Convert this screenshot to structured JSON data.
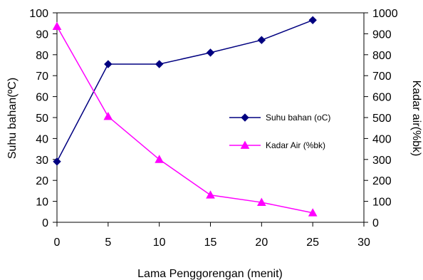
{
  "chart_data": {
    "type": "line",
    "title": "",
    "xlabel": "Lama Penggorengan (menit)",
    "ylabel": "Suhu bahan(ºC)",
    "y2label": "Kadar  air(%bk)",
    "xlim": [
      0,
      30
    ],
    "ylim": [
      0,
      100
    ],
    "y2lim": [
      0,
      1000
    ],
    "xticks": [
      "0",
      "5",
      "10",
      "15",
      "20",
      "25",
      "30"
    ],
    "yticks": [
      "0",
      "10",
      "20",
      "30",
      "40",
      "50",
      "60",
      "70",
      "80",
      "90",
      "100"
    ],
    "y2ticks": [
      "0",
      "100",
      "200",
      "300",
      "400",
      "500",
      "600",
      "700",
      "800",
      "900",
      "1000"
    ],
    "grid": false,
    "legend_position": "center-right",
    "series": [
      {
        "name": "Suhu bahan (oC)",
        "axis": "left",
        "marker": "diamond",
        "color": "#000080",
        "x": [
          0,
          5,
          10,
          15,
          20,
          25
        ],
        "values": [
          29,
          75.5,
          75.5,
          81,
          87,
          96.5
        ]
      },
      {
        "name": "Kadar Air (%bk)",
        "axis": "right",
        "marker": "triangle",
        "color": "#ff00ff",
        "x": [
          0,
          5,
          10,
          15,
          20,
          25
        ],
        "values": [
          935,
          505,
          300,
          130,
          95,
          45
        ]
      }
    ]
  }
}
